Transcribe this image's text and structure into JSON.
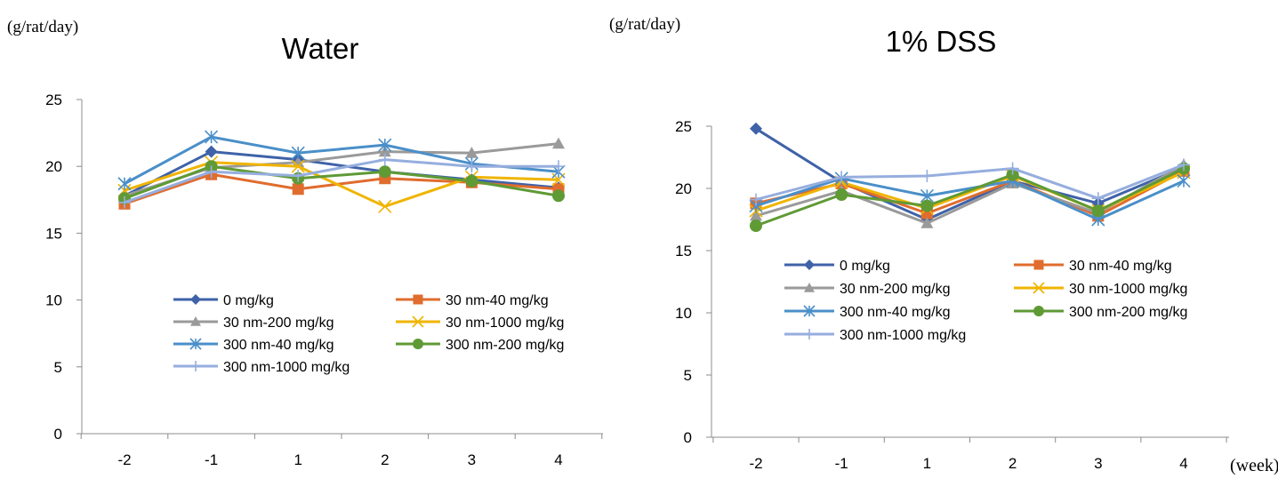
{
  "chart_data": [
    {
      "type": "line",
      "title": "Water",
      "ylabel": "(g/rat/day)",
      "xlabel": "",
      "categories": [
        "-2",
        "-1",
        "1",
        "2",
        "3",
        "4"
      ],
      "ylim": [
        0,
        25
      ],
      "yticks": [
        "0",
        "5",
        "10",
        "15",
        "20",
        "25"
      ],
      "grid": false,
      "legend_position": "inside-bottom",
      "series": [
        {
          "name": "0 mg/kg",
          "color": "#3f62a8",
          "marker": "diamond",
          "values": [
            17.8,
            21.1,
            20.5,
            19.6,
            19.0,
            18.4
          ]
        },
        {
          "name": "30 nm-40 mg/kg",
          "color": "#e06c2e",
          "marker": "square",
          "values": [
            17.2,
            19.4,
            18.3,
            19.1,
            18.8,
            18.3
          ]
        },
        {
          "name": "30 nm-200 mg/kg",
          "color": "#9a9a9a",
          "marker": "triangle",
          "values": [
            17.8,
            19.9,
            20.3,
            21.1,
            21.0,
            21.7
          ]
        },
        {
          "name": "30 nm-1000 mg/kg",
          "color": "#f0b400",
          "marker": "x",
          "values": [
            18.2,
            20.3,
            20.0,
            17.0,
            19.2,
            19.0
          ]
        },
        {
          "name": "300 nm-40 mg/kg",
          "color": "#4a8fc9",
          "marker": "star",
          "values": [
            18.7,
            22.2,
            21.0,
            21.6,
            20.2,
            19.6
          ]
        },
        {
          "name": "300 nm-200 mg/kg",
          "color": "#5f9a35",
          "marker": "circle",
          "values": [
            17.6,
            20.0,
            19.1,
            19.6,
            18.9,
            17.8
          ]
        },
        {
          "name": "300 nm-1000 mg/kg",
          "color": "#96aede",
          "marker": "plus",
          "values": [
            17.3,
            19.6,
            19.3,
            20.5,
            20.0,
            20.0
          ]
        }
      ]
    },
    {
      "type": "line",
      "title": "1% DSS",
      "ylabel": "(g/rat/day)",
      "xlabel": "(week)",
      "categories": [
        "-2",
        "-1",
        "1",
        "2",
        "3",
        "4"
      ],
      "ylim": [
        0,
        25
      ],
      "yticks": [
        "0",
        "5",
        "10",
        "15",
        "20",
        "25"
      ],
      "grid": false,
      "legend_position": "inside-middle",
      "series": [
        {
          "name": "0 mg/kg",
          "color": "#3f62a8",
          "marker": "diamond",
          "values": [
            24.8,
            20.5,
            17.5,
            20.6,
            18.8,
            21.7
          ]
        },
        {
          "name": "30 nm-40 mg/kg",
          "color": "#e06c2e",
          "marker": "square",
          "values": [
            18.8,
            20.4,
            18.0,
            20.6,
            17.8,
            21.4
          ]
        },
        {
          "name": "30 nm-200 mg/kg",
          "color": "#9a9a9a",
          "marker": "triangle",
          "values": [
            17.8,
            19.8,
            17.2,
            20.4,
            18.0,
            21.9
          ]
        },
        {
          "name": "30 nm-1000 mg/kg",
          "color": "#f0b400",
          "marker": "x",
          "values": [
            18.2,
            20.5,
            18.4,
            21.0,
            18.2,
            21.3
          ]
        },
        {
          "name": "300 nm-40 mg/kg",
          "color": "#4a8fc9",
          "marker": "star",
          "values": [
            18.6,
            20.8,
            19.4,
            20.6,
            17.5,
            20.6
          ]
        },
        {
          "name": "300 nm-200 mg/kg",
          "color": "#5f9a35",
          "marker": "circle",
          "values": [
            17.0,
            19.5,
            18.6,
            21.1,
            18.2,
            21.6
          ]
        },
        {
          "name": "300 nm-1000 mg/kg",
          "color": "#96aede",
          "marker": "plus",
          "values": [
            19.1,
            20.9,
            21.0,
            21.6,
            19.2,
            21.9
          ]
        }
      ]
    }
  ]
}
